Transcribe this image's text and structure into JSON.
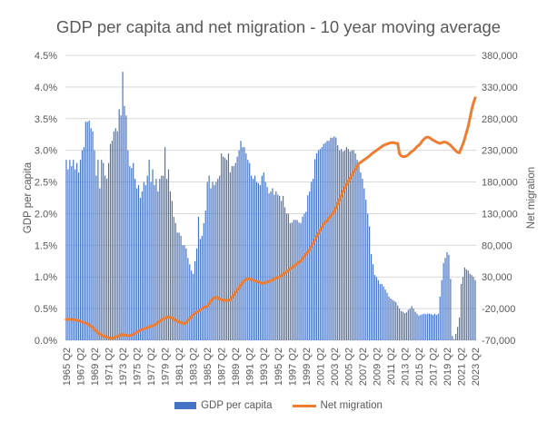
{
  "chart_data": {
    "type": "bar+line",
    "title": "GDP per capita and net migration - 10 year moving average",
    "ylabel": "GDP per capita",
    "y2label": "Net migration",
    "ylim": [
      0,
      4.5
    ],
    "y2lim": [
      -70000,
      380000
    ],
    "y_ticks": [
      "0.0%",
      "0.5%",
      "1.0%",
      "1.5%",
      "2.0%",
      "2.5%",
      "3.0%",
      "3.5%",
      "4.0%",
      "4.5%"
    ],
    "y2_ticks": [
      "-70,000",
      "-20,000",
      "30,000",
      "80,000",
      "130,000",
      "180,000",
      "230,000",
      "280,000",
      "330,000",
      "380,000"
    ],
    "x_start": "1965 Q2",
    "x_end": "2023 Q2",
    "x_tick_labels": [
      "1965 Q2",
      "1967 Q2",
      "1969 Q2",
      "1971 Q2",
      "1973 Q2",
      "1975 Q2",
      "1977 Q2",
      "1979 Q2",
      "1981 Q2",
      "1983 Q2",
      "1985 Q2",
      "1987 Q2",
      "1989 Q2",
      "1991 Q2",
      "1993 Q2",
      "1995 Q2",
      "1997 Q2",
      "1999 Q2",
      "2001 Q2",
      "2003 Q2",
      "2005 Q2",
      "2007 Q2",
      "2009 Q2",
      "2011 Q2",
      "2013 Q2",
      "2015 Q2",
      "2017 Q2",
      "2019 Q2",
      "2021 Q2",
      "2023 Q2"
    ],
    "grid": true,
    "legend": "bottom",
    "colors": {
      "gdp": "#4472C4",
      "migration": "#ED7D31"
    },
    "series": [
      {
        "name": "GDP per capita",
        "type": "bar",
        "axis": "left",
        "unit": "%",
        "values": [
          2.85,
          2.7,
          2.85,
          2.75,
          2.85,
          2.7,
          2.8,
          2.65,
          2.85,
          3.0,
          3.05,
          3.45,
          3.45,
          3.47,
          3.35,
          3.3,
          3.0,
          2.6,
          2.85,
          2.4,
          2.85,
          2.8,
          2.6,
          2.55,
          2.8,
          3.1,
          3.15,
          3.3,
          3.35,
          3.3,
          3.65,
          3.55,
          4.24,
          3.7,
          3.55,
          3.0,
          2.75,
          2.72,
          2.8,
          2.55,
          2.4,
          2.45,
          2.25,
          2.35,
          2.5,
          2.45,
          2.6,
          2.85,
          2.5,
          2.7,
          2.45,
          2.55,
          2.35,
          2.55,
          2.6,
          2.6,
          3.05,
          2.55,
          2.7,
          2.35,
          2.2,
          1.95,
          1.85,
          1.7,
          1.7,
          1.65,
          1.5,
          1.5,
          1.45,
          1.3,
          1.2,
          1.1,
          1.05,
          1.25,
          1.45,
          1.95,
          1.6,
          1.65,
          1.85,
          2.05,
          2.5,
          2.6,
          2.4,
          2.5,
          2.45,
          2.5,
          2.55,
          2.6,
          2.95,
          2.9,
          2.88,
          2.85,
          2.95,
          2.65,
          2.75,
          2.75,
          2.8,
          2.9,
          3.0,
          3.15,
          3.05,
          3.05,
          2.95,
          2.85,
          2.8,
          2.6,
          2.55,
          2.6,
          2.5,
          2.48,
          2.45,
          2.6,
          2.65,
          2.5,
          2.42,
          2.32,
          2.35,
          2.4,
          2.3,
          2.35,
          2.3,
          2.28,
          2.2,
          2.28,
          2.1,
          2.0,
          2.0,
          1.85,
          1.86,
          1.9,
          1.9,
          1.9,
          1.86,
          1.85,
          1.95,
          2.0,
          2.03,
          2.29,
          2.35,
          2.5,
          2.55,
          2.86,
          2.95,
          3.0,
          3.02,
          3.05,
          3.1,
          3.12,
          3.15,
          3.15,
          3.2,
          3.2,
          3.22,
          3.2,
          3.08,
          3.0,
          3.02,
          2.98,
          3.0,
          3.05,
          3.02,
          2.98,
          3.0,
          3.0,
          2.95,
          2.85,
          2.75,
          2.65,
          2.55,
          2.4,
          2.22,
          2.0,
          1.8,
          1.36,
          1.2,
          1.03,
          1.0,
          0.95,
          0.89,
          0.89,
          0.85,
          0.8,
          0.75,
          0.69,
          0.66,
          0.64,
          0.62,
          0.6,
          0.55,
          0.5,
          0.46,
          0.45,
          0.43,
          0.44,
          0.48,
          0.5,
          0.54,
          0.5,
          0.45,
          0.42,
          0.39,
          0.4,
          0.41,
          0.42,
          0.41,
          0.42,
          0.42,
          0.41,
          0.4,
          0.42,
          0.4,
          0.42,
          0.69,
          0.95,
          1.22,
          1.3,
          1.39,
          1.35,
          0.97,
          0.07,
          0.02,
          0.1,
          0.21,
          0.36,
          0.89,
          1.0,
          1.15,
          1.12,
          1.1,
          1.05,
          1.03,
          1.0,
          0.95
        ]
      },
      {
        "name": "Net migration",
        "type": "line",
        "axis": "right",
        "values": [
          -37000,
          -37000,
          -37000,
          -37000,
          -37000,
          -38000,
          -38000,
          -39000,
          -40000,
          -41000,
          -42000,
          -43000,
          -44000,
          -46000,
          -48000,
          -50000,
          -53000,
          -55000,
          -58000,
          -60000,
          -62000,
          -63000,
          -64000,
          -65000,
          -66000,
          -67000,
          -67000,
          -66000,
          -65000,
          -64000,
          -63000,
          -61000,
          -61000,
          -62000,
          -62000,
          -63000,
          -63000,
          -62000,
          -61000,
          -59000,
          -58000,
          -56000,
          -54000,
          -53000,
          -52000,
          -51000,
          -50000,
          -49000,
          -48000,
          -47000,
          -46000,
          -44000,
          -42000,
          -40000,
          -38000,
          -36000,
          -35000,
          -34000,
          -33000,
          -34000,
          -35000,
          -37000,
          -38000,
          -40000,
          -41000,
          -42000,
          -43000,
          -44000,
          -42000,
          -39000,
          -36000,
          -33000,
          -30000,
          -28000,
          -26000,
          -24000,
          -22000,
          -20000,
          -18000,
          -17000,
          -16000,
          -12000,
          -8000,
          -5000,
          -3000,
          -2000,
          -3000,
          -5000,
          -6000,
          -7000,
          -7000,
          -7000,
          -7000,
          -6000,
          -2000,
          2000,
          6000,
          10000,
          13000,
          17000,
          21000,
          24000,
          26000,
          27000,
          27000,
          26000,
          25000,
          24000,
          23000,
          22000,
          21000,
          20000,
          20000,
          21000,
          22000,
          23000,
          24000,
          25000,
          27000,
          28000,
          29000,
          30000,
          32000,
          34000,
          36000,
          38000,
          40000,
          43000,
          45000,
          47000,
          49000,
          51000,
          53000,
          55000,
          59000,
          62000,
          66000,
          69000,
          73000,
          78000,
          83000,
          88000,
          94000,
          99000,
          104000,
          109000,
          114000,
          117000,
          119000,
          123000,
          126000,
          130000,
          133000,
          139000,
          146000,
          152000,
          158000,
          165000,
          171000,
          176000,
          181000,
          186000,
          191000,
          196000,
          200000,
          205000,
          209000,
          211000,
          213000,
          215000,
          217000,
          219000,
          221000,
          224000,
          226000,
          228000,
          230000,
          232000,
          234000,
          236000,
          238000,
          239000,
          240000,
          241000,
          242000,
          242000,
          242000,
          241000,
          241000,
          225000,
          221000,
          220000,
          220000,
          221000,
          223000,
          226000,
          228000,
          230000,
          233000,
          236000,
          238000,
          241000,
          245000,
          248000,
          250000,
          251000,
          250000,
          248000,
          246000,
          245000,
          243000,
          242000,
          241000,
          242000,
          243000,
          243000,
          242000,
          240000,
          238000,
          235000,
          232000,
          229000,
          227000,
          226000,
          233000,
          240000,
          248000,
          258000,
          268000,
          281000,
          295000,
          305000,
          313000
        ]
      }
    ]
  }
}
